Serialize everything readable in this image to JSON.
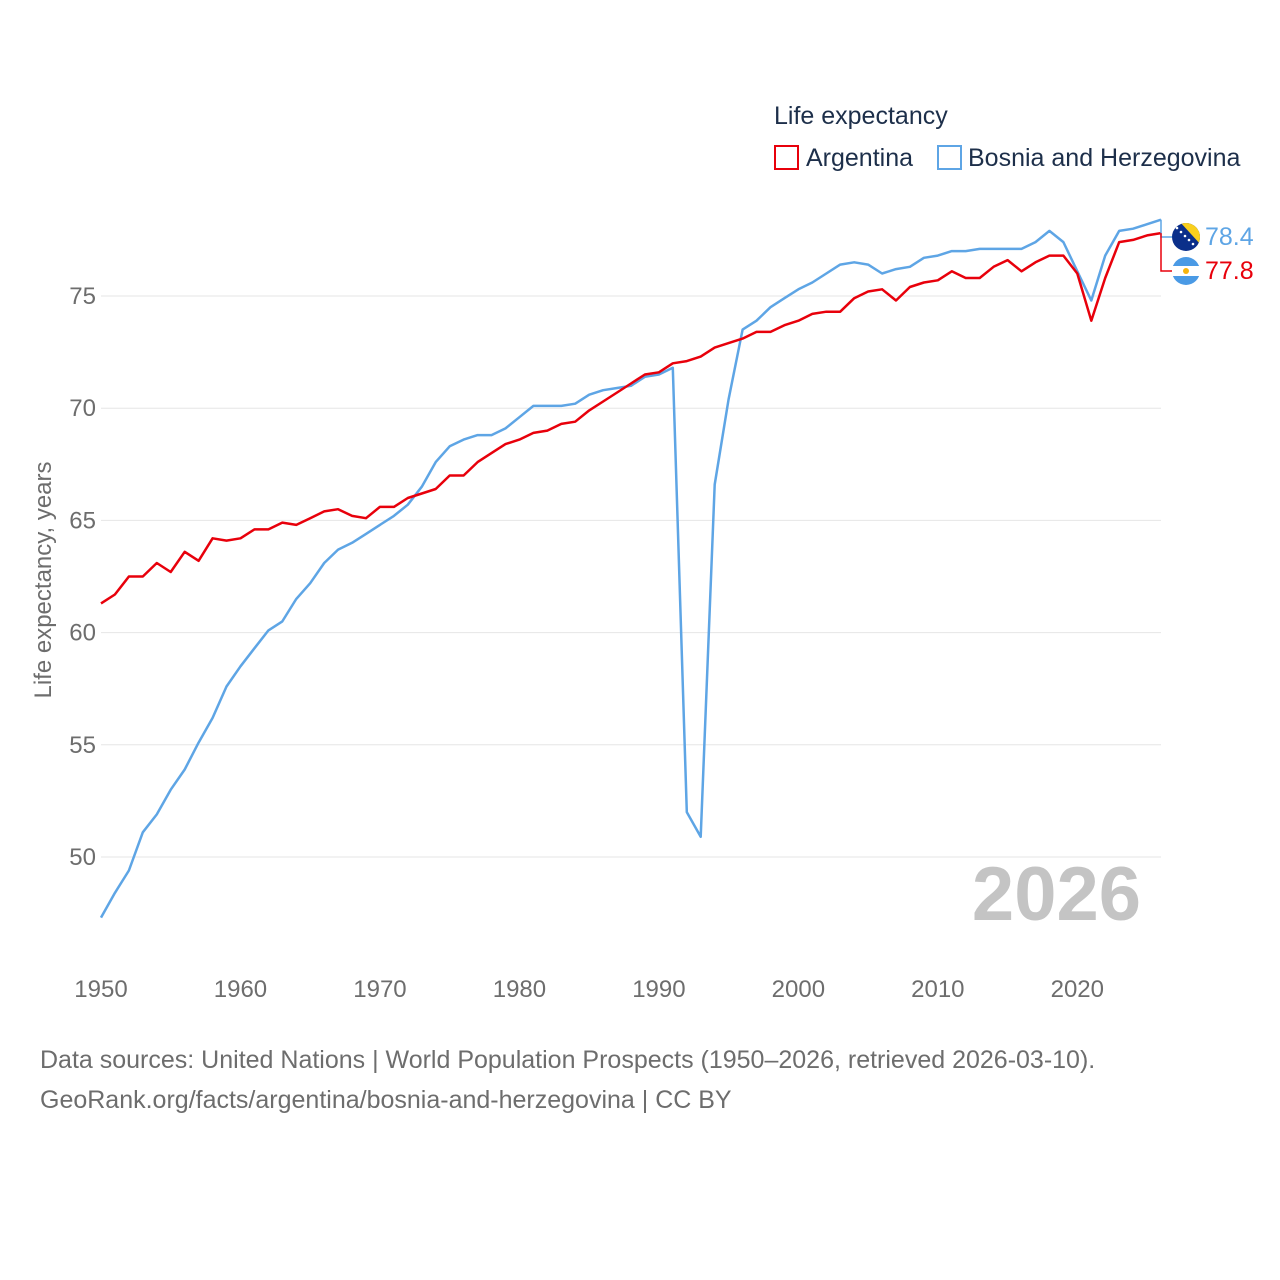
{
  "chart_data": {
    "type": "line",
    "legend_title": "Life expectancy",
    "ylabel": "Life expectancy, years",
    "xlabel": "",
    "xlim": [
      1950,
      2026
    ],
    "ylim": [
      45.5,
      79.5
    ],
    "x_ticks": [
      1950,
      1960,
      1970,
      1980,
      1990,
      2000,
      2010,
      2020
    ],
    "y_ticks": [
      50,
      55,
      60,
      65,
      70,
      75
    ],
    "grid": true,
    "legend_position": "top-right",
    "current_year": "2026",
    "x": [
      1950,
      1951,
      1952,
      1953,
      1954,
      1955,
      1956,
      1957,
      1958,
      1959,
      1960,
      1961,
      1962,
      1963,
      1964,
      1965,
      1966,
      1967,
      1968,
      1969,
      1970,
      1971,
      1972,
      1973,
      1974,
      1975,
      1976,
      1977,
      1978,
      1979,
      1980,
      1981,
      1982,
      1983,
      1984,
      1985,
      1986,
      1987,
      1988,
      1989,
      1990,
      1991,
      1992,
      1993,
      1994,
      1995,
      1996,
      1997,
      1998,
      1999,
      2000,
      2001,
      2002,
      2003,
      2004,
      2005,
      2006,
      2007,
      2008,
      2009,
      2010,
      2011,
      2012,
      2013,
      2014,
      2015,
      2016,
      2017,
      2018,
      2019,
      2020,
      2021,
      2022,
      2023,
      2024,
      2025,
      2026
    ],
    "series": [
      {
        "name": "Argentina",
        "color": "#e8000b",
        "end_label": "77.8",
        "flag": "argentina-flag-icon",
        "values": [
          61.3,
          61.7,
          62.5,
          62.5,
          63.1,
          62.7,
          63.6,
          63.2,
          64.2,
          64.1,
          64.2,
          64.6,
          64.6,
          64.9,
          64.8,
          65.1,
          65.4,
          65.5,
          65.2,
          65.1,
          65.6,
          65.6,
          66.0,
          66.2,
          66.4,
          67.0,
          67.0,
          67.6,
          68.0,
          68.4,
          68.6,
          68.9,
          69.0,
          69.3,
          69.4,
          69.9,
          70.3,
          70.7,
          71.1,
          71.5,
          71.6,
          72.0,
          72.1,
          72.3,
          72.7,
          72.9,
          73.1,
          73.4,
          73.4,
          73.7,
          73.9,
          74.2,
          74.3,
          74.3,
          74.9,
          75.2,
          75.3,
          74.8,
          75.4,
          75.6,
          75.7,
          76.1,
          75.8,
          75.8,
          76.3,
          76.6,
          76.1,
          76.5,
          76.8,
          76.8,
          76.0,
          73.9,
          75.8,
          77.4,
          77.5,
          77.7,
          77.8
        ]
      },
      {
        "name": "Bosnia and Herzegovina",
        "color": "#5ea5e5",
        "end_label": "78.4",
        "flag": "bosnia-flag-icon",
        "values": [
          47.3,
          48.4,
          49.4,
          51.1,
          51.9,
          53.0,
          53.9,
          55.1,
          56.2,
          57.6,
          58.5,
          59.3,
          60.1,
          60.5,
          61.5,
          62.2,
          63.1,
          63.7,
          64.0,
          64.4,
          64.8,
          65.2,
          65.7,
          66.5,
          67.6,
          68.3,
          68.6,
          68.8,
          68.8,
          69.1,
          69.6,
          70.1,
          70.1,
          70.1,
          70.2,
          70.6,
          70.8,
          70.9,
          71.0,
          71.4,
          71.5,
          71.8,
          52.0,
          50.9,
          66.6,
          70.4,
          73.5,
          73.9,
          74.5,
          74.9,
          75.3,
          75.6,
          76.0,
          76.4,
          76.5,
          76.4,
          76.0,
          76.2,
          76.3,
          76.7,
          76.8,
          77.0,
          77.0,
          77.1,
          77.1,
          77.1,
          77.1,
          77.4,
          77.9,
          77.4,
          76.1,
          74.8,
          76.8,
          77.9,
          78.0,
          78.2,
          78.4
        ]
      }
    ]
  },
  "source": {
    "line1": "Data sources: United Nations | World Population Prospects (1950–2026, retrieved 2026-03-10).",
    "line2": "GeoRank.org/facts/argentina/bosnia-and-herzegovina | CC BY"
  }
}
